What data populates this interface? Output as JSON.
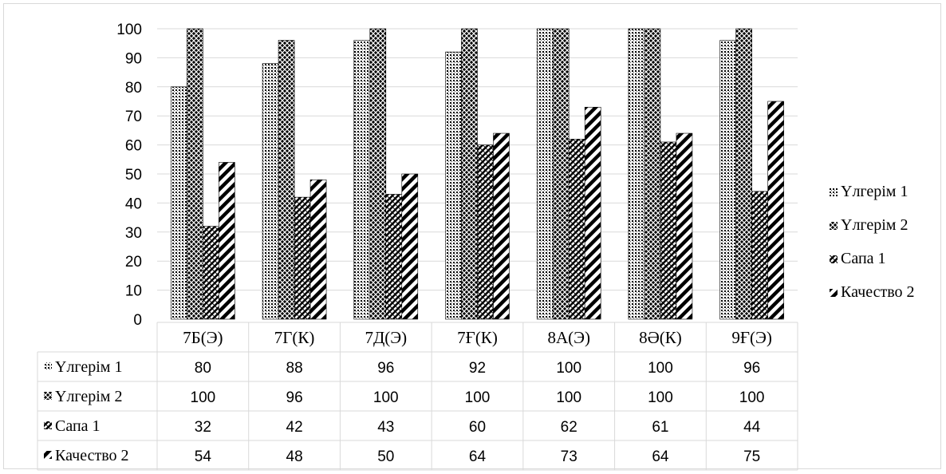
{
  "chart_data": {
    "type": "bar",
    "title": "",
    "xlabel": "",
    "ylabel": "",
    "ylim": [
      0,
      100
    ],
    "yticks": [
      0,
      10,
      20,
      30,
      40,
      50,
      60,
      70,
      80,
      90,
      100
    ],
    "grid": true,
    "legend_position": "right",
    "has_data_table": true,
    "categories": [
      "7Б(Э)",
      "7Г(К)",
      "7Д(Э)",
      "7Ғ(К)",
      "8А(Э)",
      "8Ә(К)",
      "9Ғ(Э)"
    ],
    "series": [
      {
        "name": "Үлгерім 1",
        "values": [
          80,
          88,
          96,
          92,
          100,
          100,
          96
        ]
      },
      {
        "name": "Үлгерім 2",
        "values": [
          100,
          96,
          100,
          100,
          100,
          100,
          100
        ]
      },
      {
        "name": "Сапа 1",
        "values": [
          32,
          42,
          43,
          60,
          62,
          61,
          44
        ]
      },
      {
        "name": "Качество 2",
        "values": [
          54,
          48,
          50,
          64,
          73,
          64,
          75
        ]
      }
    ]
  }
}
